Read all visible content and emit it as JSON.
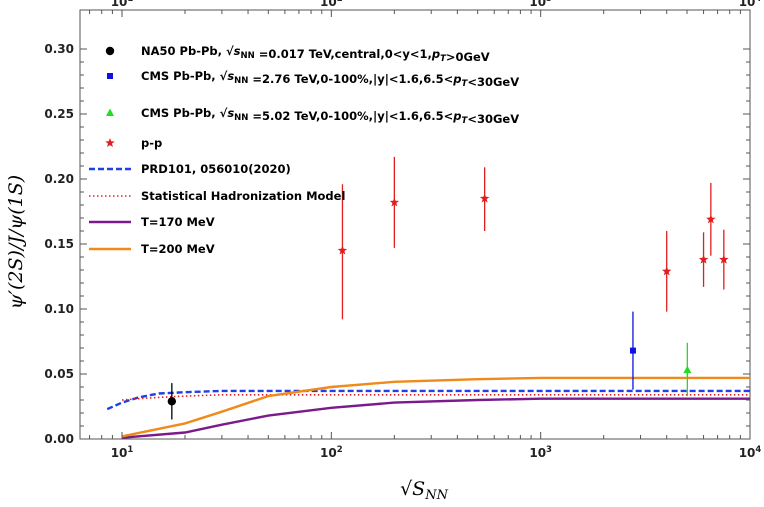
{
  "chart_data": {
    "type": "scatter",
    "title": "",
    "xlabel": "√S_NN",
    "ylabel": "ψ′(2S)/J/ψ(1S)",
    "xscale": "log",
    "xlim": [
      6.3,
      10000
    ],
    "ylim": [
      0,
      0.33
    ],
    "xticks": [
      {
        "value": 10,
        "base": "10",
        "exp": "1"
      },
      {
        "value": 100,
        "base": "10",
        "exp": "2"
      },
      {
        "value": 1000,
        "base": "10",
        "exp": "3"
      },
      {
        "value": 10000,
        "base": "10",
        "exp": "4"
      }
    ],
    "yticks": [
      "0.00",
      "0.05",
      "0.10",
      "0.15",
      "0.20",
      "0.25",
      "0.30"
    ],
    "legend_position": "top-left",
    "series": [
      {
        "name": "NA50 Pb-Pb, √sNN =0.017 TeV,central,0<y<1,pT>0GeV",
        "kind": "points",
        "marker": "circle",
        "color": "#000000",
        "points": [
          {
            "x": 17.3,
            "y": 0.029,
            "ylo": 0.015,
            "yhi": 0.043
          }
        ]
      },
      {
        "name": "CMS Pb-Pb, √sNN =2.76 TeV,0-100%,|y|<1.6,6.5<pT<30GeV",
        "kind": "points",
        "marker": "square",
        "color": "#1010e0",
        "points": [
          {
            "x": 2760,
            "y": 0.068,
            "ylo": 0.038,
            "yhi": 0.098
          }
        ]
      },
      {
        "name": "CMS Pb-Pb, √sNN =5.02 TeV,0-100%,|y|<1.6,6.5<pT<30GeV",
        "kind": "points",
        "marker": "triangle",
        "color": "#22dd22",
        "points": [
          {
            "x": 5020,
            "y": 0.053,
            "ylo": 0.033,
            "yhi": 0.074
          }
        ]
      },
      {
        "name": "p-p",
        "kind": "points",
        "marker": "star",
        "color": "#e02020",
        "points": [
          {
            "x": 113,
            "y": 0.145,
            "ylo": 0.092,
            "yhi": 0.196
          },
          {
            "x": 200,
            "y": 0.182,
            "ylo": 0.147,
            "yhi": 0.217
          },
          {
            "x": 540,
            "y": 0.185,
            "ylo": 0.16,
            "yhi": 0.209
          },
          {
            "x": 4000,
            "y": 0.129,
            "ylo": 0.098,
            "yhi": 0.16
          },
          {
            "x": 6000,
            "y": 0.138,
            "ylo": 0.117,
            "yhi": 0.159
          },
          {
            "x": 6500,
            "y": 0.169,
            "ylo": 0.141,
            "yhi": 0.197
          },
          {
            "x": 7500,
            "y": 0.138,
            "ylo": 0.115,
            "yhi": 0.161
          }
        ]
      },
      {
        "name": "PRD101, 056010(2020)",
        "kind": "line",
        "style": "dashed",
        "color": "#1f3fe8",
        "x": [
          8.5,
          10,
          12,
          15,
          20,
          30,
          50,
          100,
          300,
          1000,
          10000
        ],
        "y": [
          0.023,
          0.028,
          0.032,
          0.035,
          0.036,
          0.037,
          0.037,
          0.037,
          0.037,
          0.037,
          0.037
        ]
      },
      {
        "name": "Statistical Hadronization Model",
        "kind": "line",
        "style": "dotted",
        "color": "#e02020",
        "x": [
          10,
          12,
          15,
          20,
          30,
          50,
          100,
          300,
          1000,
          10000
        ],
        "y": [
          0.03,
          0.031,
          0.032,
          0.033,
          0.034,
          0.034,
          0.034,
          0.034,
          0.034,
          0.034
        ]
      },
      {
        "name": "T=170 MeV",
        "kind": "line",
        "style": "solid",
        "color": "#7a1a8c",
        "x": [
          10,
          20,
          30,
          50,
          100,
          200,
          500,
          1000,
          3000,
          10000
        ],
        "y": [
          0.001,
          0.005,
          0.011,
          0.018,
          0.024,
          0.028,
          0.03,
          0.031,
          0.031,
          0.031
        ]
      },
      {
        "name": "T=200 MeV",
        "kind": "line",
        "style": "solid",
        "color": "#f08a1a",
        "x": [
          10,
          20,
          30,
          50,
          100,
          200,
          500,
          1000,
          3000,
          10000
        ],
        "y": [
          0.002,
          0.012,
          0.021,
          0.033,
          0.04,
          0.044,
          0.046,
          0.047,
          0.047,
          0.047
        ]
      }
    ]
  }
}
